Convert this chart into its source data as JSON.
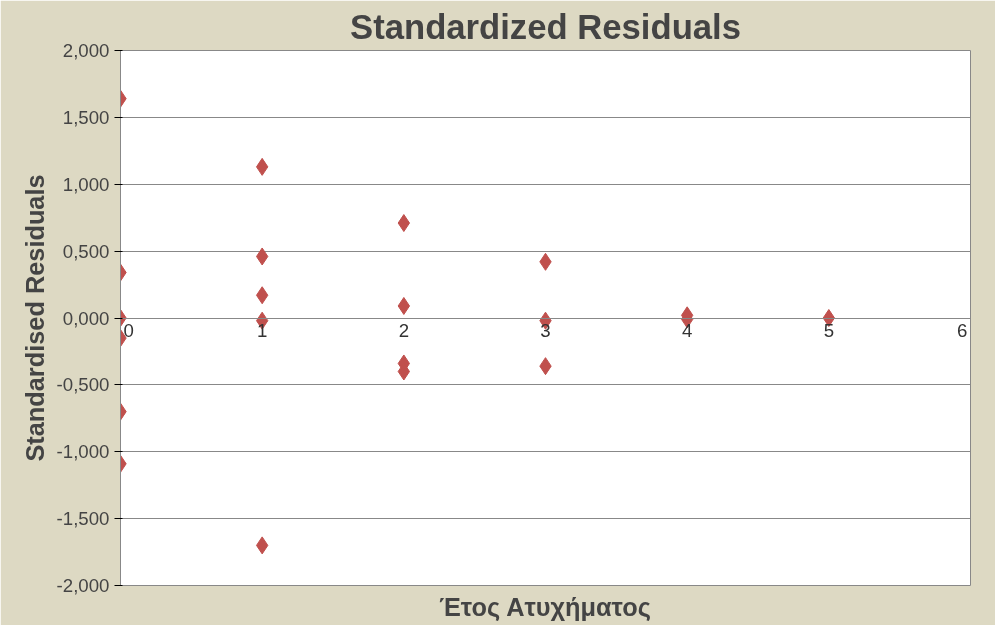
{
  "chart_data": {
    "type": "scatter",
    "title": "Standardized Residuals",
    "xlabel": "Έτος Ατυχήματος",
    "ylabel": "Standardised Residuals",
    "series": [
      {
        "color": "#c0504d",
        "x": [
          0,
          0,
          0,
          0,
          0,
          0,
          1,
          1,
          1,
          1,
          1,
          2,
          2,
          2,
          2,
          3,
          3,
          3,
          4,
          4,
          5
        ],
        "values": [
          1.64,
          0.34,
          0.0,
          -0.15,
          -0.7,
          -1.09,
          1.13,
          0.46,
          0.17,
          -0.02,
          -1.7,
          0.71,
          0.09,
          -0.34,
          -0.4,
          0.42,
          -0.02,
          -0.36,
          0.02,
          -0.01,
          0.0
        ]
      }
    ],
    "marker": "diamond",
    "grid": "y",
    "xlim": [
      0,
      6
    ],
    "xticks": [
      0,
      1,
      2,
      3,
      4,
      5,
      6
    ],
    "ylim": [
      -2,
      2
    ],
    "yticks": [
      {
        "value": -2,
        "label": "-2,000"
      },
      {
        "value": -1.5,
        "label": "-1,500"
      },
      {
        "value": -1,
        "label": "-1,000"
      },
      {
        "value": -0.5,
        "label": "-0,500"
      },
      {
        "value": 0,
        "label": "0,000"
      },
      {
        "value": 0.5,
        "label": "0,500"
      },
      {
        "value": 1,
        "label": "1,000"
      },
      {
        "value": 1.5,
        "label": "1,500"
      },
      {
        "value": 2,
        "label": "2,000"
      }
    ]
  }
}
